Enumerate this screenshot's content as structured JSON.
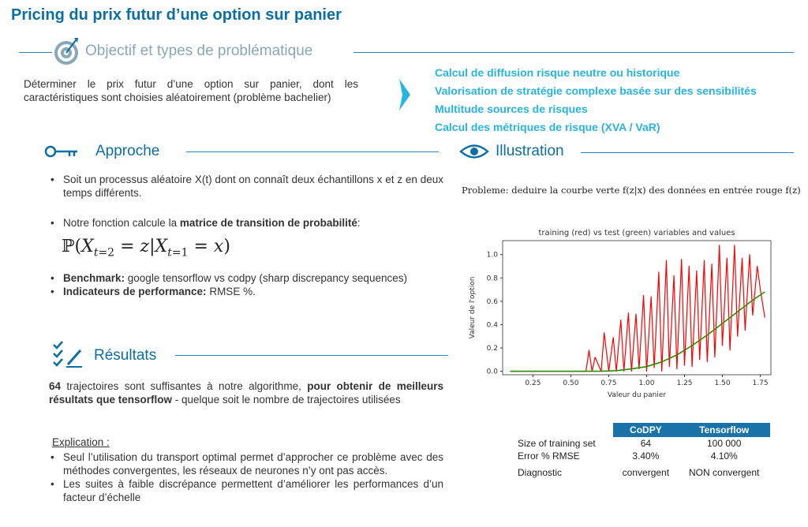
{
  "title": "Pricing du prix futur d’une option sur panier",
  "objective": {
    "heading": "Objectif et types de problématique",
    "text": "Déterminer le prix futur d’une option sur panier, dont les caractéristiques sont choisies aléatoirement (problème bachelier)",
    "points": [
      "Calcul de diffusion risque neutre ou historique",
      "Valorisation de stratégie complexe basée sur des sensibilités",
      "Multitude sources de risques",
      "Calcul des métriques de risque (XVA / VaR)"
    ]
  },
  "approche": {
    "heading": "Approche",
    "bullet1": "Soit un processus aléatoire X(t) dont on connaît deux échantillons x et z en deux temps différents.",
    "bullet2_pre": "Notre fonction calcule la ",
    "bullet2_bold": "matrice de transition de probabilité",
    "bullet2_post": ":",
    "formula": "ℙ(Xₜ₌₂ = z|Xₜ₌₁ = x)",
    "bench_label": "Benchmark:",
    "bench_text": " google tensorflow vs codpy (sharp discrepancy sequences)",
    "perf_label": "Indicateurs de performance:",
    "perf_text": " RMSE %."
  },
  "illustration": {
    "heading": "Illustration",
    "caption": "Probleme: deduire la courbe verte f(z|x) des données en entrée rouge f(z)"
  },
  "resultats": {
    "heading": "Résultats",
    "p1_num": "64",
    "p1_a": " trajectoires sont suffisantes à notre algorithme, ",
    "p1_bold": "pour obtenir de meilleurs résultats que tensorflow",
    "p1_b": " - quelque soit le nombre de trajectoires utilisées",
    "expl_label": "Explication :",
    "expl_items": [
      "Seul l’utilisation du transport optimal permet d’approcher ce problème avec des méthodes convergentes, les réseaux de neurones n’y ont pas accès.",
      "Les suites à faible discrépance permettent d’améliorer les performances d’un facteur d’échelle"
    ]
  },
  "table": {
    "headers": [
      "",
      "CoDPY",
      "Tensorflow"
    ],
    "rows": [
      [
        "Size of training set",
        "64",
        "100 000"
      ],
      [
        "Error % RMSE",
        "3.40%",
        "4.10%"
      ],
      [
        "Diagnostic",
        "convergent",
        "NON convergent"
      ]
    ]
  },
  "chart_data": {
    "type": "line",
    "title": "training (red) vs test (green) variables and values",
    "xlabel": "Valeur du panier",
    "ylabel": "Valeur de l'option",
    "xlim": [
      0.05,
      1.82
    ],
    "ylim": [
      -0.03,
      1.12
    ],
    "xticks": [
      "0.25",
      "0.50",
      "0.75",
      "1.00",
      "1.25",
      "1.50",
      "1.75"
    ],
    "yticks": [
      "0.0",
      "0.2",
      "0.4",
      "0.6",
      "0.8",
      "1.0"
    ],
    "series": [
      {
        "name": "training (red)",
        "color": "#ff0000",
        "x": [
          0.1,
          0.6,
          0.62,
          0.64,
          0.66,
          0.7,
          0.72,
          0.75,
          0.78,
          0.8,
          0.83,
          0.85,
          0.88,
          0.9,
          0.93,
          0.95,
          0.98,
          1.0,
          1.03,
          1.05,
          1.08,
          1.1,
          1.13,
          1.15,
          1.18,
          1.2,
          1.23,
          1.25,
          1.28,
          1.3,
          1.33,
          1.35,
          1.38,
          1.4,
          1.43,
          1.45,
          1.48,
          1.5,
          1.53,
          1.55,
          1.58,
          1.6,
          1.63,
          1.65,
          1.68,
          1.7,
          1.73,
          1.75,
          1.78
        ],
        "y": [
          0.0,
          0.0,
          0.18,
          0.0,
          0.12,
          0.0,
          0.33,
          0.0,
          0.29,
          0.0,
          0.44,
          0.0,
          0.5,
          0.0,
          0.49,
          0.02,
          0.65,
          0.0,
          0.64,
          0.03,
          0.85,
          0.0,
          0.95,
          0.04,
          0.82,
          0.02,
          0.96,
          0.05,
          0.9,
          0.04,
          0.86,
          0.1,
          0.95,
          0.08,
          0.92,
          0.12,
          1.08,
          0.22,
          0.97,
          0.18,
          1.08,
          0.3,
          0.97,
          0.35,
          1.0,
          0.48,
          0.9,
          0.7,
          0.46
        ]
      },
      {
        "name": "test (green)",
        "color": "#2e8b00",
        "x": [
          0.1,
          0.7,
          0.8,
          0.9,
          1.0,
          1.1,
          1.2,
          1.3,
          1.4,
          1.5,
          1.6,
          1.7,
          1.78
        ],
        "y": [
          0.0,
          0.0,
          0.005,
          0.02,
          0.04,
          0.08,
          0.14,
          0.22,
          0.31,
          0.41,
          0.51,
          0.61,
          0.68
        ]
      }
    ]
  },
  "colors": {
    "primary": "#0b6fa4",
    "cyan": "#28b4e0",
    "table_header": "#1a73a8"
  }
}
